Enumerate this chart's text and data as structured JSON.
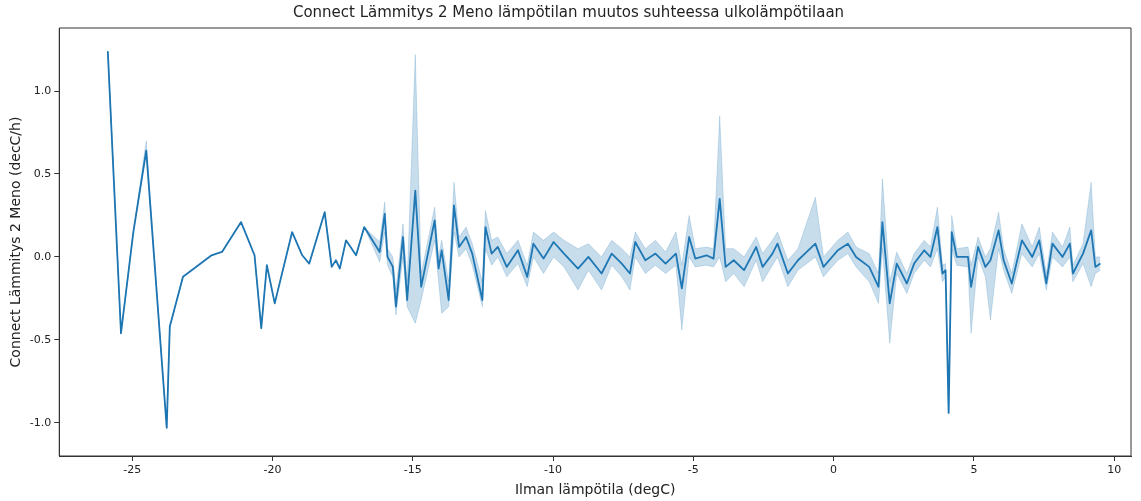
{
  "chart_data": {
    "type": "line",
    "title": "Connect Lämmitys 2 Meno lämpötilan muutos suhteessa ulkolämpötilaan",
    "xlabel": "Ilman lämpötila (degC)",
    "ylabel": "Connect Lämmitys 2 Meno (decC/h)",
    "xlim": [
      -27.6,
      10.6
    ],
    "ylim": [
      -1.2,
      1.38
    ],
    "xticks": [
      -25,
      -20,
      -15,
      -10,
      -5,
      0,
      5,
      10
    ],
    "yticks": [
      {
        "value": -1,
        "label": "-1.0"
      },
      {
        "value": -0.5,
        "label": "-0.5"
      },
      {
        "value": 0,
        "label": "0.0"
      },
      {
        "value": 0.5,
        "label": "0.5"
      },
      {
        "value": 1,
        "label": "1.0"
      }
    ],
    "grid": false,
    "legend": false,
    "marker": "none",
    "line_style": "solid",
    "series": [
      {
        "color": "#1f77b4",
        "x": [
          -25.87,
          -25.4,
          -24.96,
          -24.5,
          -23.77,
          -23.66,
          -23.19,
          -22.17,
          -21.8,
          -21.12,
          -20.64,
          -20.4,
          -20.2,
          -19.92,
          -19.3,
          -18.94,
          -18.69,
          -18.14,
          -17.89,
          -17.74,
          -17.6,
          -17.38,
          -17.02,
          -16.73,
          -16.18,
          -16.0,
          -15.9,
          -15.71,
          -15.6,
          -15.35,
          -15.2,
          -14.91,
          -14.7,
          -14.22,
          -14.08,
          -13.97,
          -13.72,
          -13.53,
          -13.35,
          -13.1,
          -12.88,
          -12.52,
          -12.41,
          -12.19,
          -11.97,
          -11.65,
          -11.25,
          -10.92,
          -10.7,
          -10.34,
          -9.98,
          -9.61,
          -9.11,
          -8.74,
          -8.27,
          -7.91,
          -7.55,
          -7.26,
          -7.07,
          -6.71,
          -6.35,
          -5.99,
          -5.62,
          -5.41,
          -5.15,
          -4.93,
          -4.53,
          -4.28,
          -4.06,
          -3.85,
          -3.56,
          -3.19,
          -2.76,
          -2.53,
          -2.18,
          -2.0,
          -1.63,
          -1.27,
          -0.65,
          -0.36,
          0.15,
          0.51,
          0.8,
          1.27,
          1.6,
          1.74,
          2.0,
          2.25,
          2.61,
          2.87,
          3.23,
          3.45,
          3.7,
          3.88,
          3.99,
          4.1,
          4.21,
          4.39,
          4.79,
          4.9,
          5.15,
          5.41,
          5.59,
          5.88,
          6.06,
          6.35,
          6.71,
          7.08,
          7.33,
          7.58,
          7.8,
          8.16,
          8.42,
          8.53,
          8.89,
          9.18,
          9.33,
          9.51
        ],
        "values": [
          1.24,
          -0.46,
          0.15,
          0.64,
          -1.03,
          -0.42,
          -0.12,
          0.01,
          0.03,
          0.21,
          0.01,
          -0.43,
          -0.05,
          -0.28,
          0.15,
          0.01,
          -0.04,
          0.27,
          -0.06,
          -0.02,
          -0.07,
          0.1,
          0.01,
          0.18,
          0.03,
          0.26,
          0.0,
          -0.06,
          -0.3,
          0.12,
          -0.26,
          0.4,
          -0.18,
          0.22,
          -0.07,
          0.04,
          -0.26,
          0.31,
          0.06,
          0.12,
          0.02,
          -0.26,
          0.18,
          0.02,
          0.06,
          -0.06,
          0.04,
          -0.12,
          0.08,
          -0.01,
          0.09,
          0.02,
          -0.07,
          0.0,
          -0.1,
          0.02,
          -0.04,
          -0.1,
          0.09,
          -0.02,
          0.02,
          -0.04,
          0.02,
          -0.19,
          0.12,
          -0.01,
          0.01,
          -0.01,
          0.35,
          -0.06,
          -0.02,
          -0.08,
          0.06,
          -0.06,
          0.02,
          0.08,
          -0.1,
          -0.02,
          0.08,
          -0.06,
          0.04,
          0.08,
          0.0,
          -0.06,
          -0.18,
          0.21,
          -0.28,
          -0.04,
          -0.16,
          -0.04,
          0.04,
          0.0,
          0.18,
          -0.1,
          -0.08,
          -0.94,
          0.15,
          0.0,
          0.0,
          -0.18,
          0.06,
          -0.06,
          -0.02,
          0.16,
          -0.02,
          -0.16,
          0.1,
          0.0,
          0.1,
          -0.16,
          0.08,
          0.0,
          0.08,
          -0.1,
          0.02,
          0.16,
          -0.06,
          -0.04
        ],
        "lower": [
          1.24,
          -0.46,
          0.15,
          0.64,
          -1.03,
          -0.42,
          -0.12,
          0.01,
          0.03,
          0.21,
          0.01,
          -0.43,
          -0.05,
          -0.28,
          0.15,
          0.01,
          -0.04,
          0.27,
          -0.06,
          -0.02,
          -0.07,
          0.1,
          0.01,
          0.18,
          -0.03,
          0.15,
          -0.05,
          -0.12,
          -0.35,
          0.0,
          -0.3,
          -0.4,
          -0.26,
          0.1,
          -0.15,
          -0.34,
          -0.3,
          0.15,
          0.0,
          0.05,
          -0.05,
          -0.3,
          0.05,
          -0.05,
          0.0,
          -0.12,
          -0.04,
          -0.18,
          0.0,
          -0.1,
          0.0,
          -0.06,
          -0.2,
          -0.08,
          -0.2,
          -0.05,
          -0.12,
          -0.2,
          0.0,
          -0.1,
          -0.05,
          -0.1,
          -0.05,
          -0.44,
          0.0,
          -0.06,
          -0.05,
          -0.06,
          0.0,
          -0.15,
          -0.1,
          -0.18,
          -0.02,
          -0.15,
          -0.05,
          0.0,
          -0.18,
          -0.08,
          0.0,
          -0.12,
          -0.02,
          0.02,
          -0.06,
          -0.15,
          -0.28,
          0.05,
          -0.52,
          -0.1,
          -0.22,
          -0.1,
          -0.02,
          -0.06,
          0.05,
          -0.15,
          -0.12,
          -0.94,
          0.05,
          -0.05,
          -0.06,
          -0.46,
          0.0,
          -0.12,
          -0.38,
          0.05,
          -0.08,
          -0.22,
          0.02,
          -0.06,
          0.02,
          -0.2,
          0.0,
          -0.06,
          0.0,
          -0.15,
          -0.04,
          -0.18,
          -0.1,
          -0.08
        ],
        "upper": [
          1.24,
          -0.46,
          0.15,
          0.7,
          -1.03,
          -0.42,
          -0.12,
          0.01,
          0.03,
          0.21,
          0.01,
          -0.43,
          -0.05,
          -0.28,
          0.15,
          0.01,
          -0.04,
          0.27,
          -0.06,
          -0.02,
          -0.07,
          0.1,
          0.01,
          0.18,
          0.09,
          0.33,
          0.05,
          0.0,
          -0.2,
          0.2,
          -0.15,
          1.22,
          -0.1,
          0.3,
          0.0,
          0.1,
          -0.15,
          0.45,
          0.12,
          0.18,
          0.08,
          -0.15,
          0.28,
          0.1,
          0.12,
          0.02,
          0.1,
          -0.05,
          0.15,
          0.1,
          0.15,
          0.1,
          0.05,
          0.08,
          0.0,
          0.1,
          0.05,
          0.0,
          0.15,
          0.05,
          0.1,
          0.03,
          0.15,
          -0.05,
          0.25,
          0.05,
          0.06,
          0.05,
          0.85,
          0.05,
          0.05,
          0.0,
          0.12,
          0.02,
          0.1,
          0.15,
          -0.02,
          0.05,
          0.36,
          0.0,
          0.1,
          0.15,
          0.06,
          0.02,
          -0.1,
          0.47,
          -0.15,
          0.03,
          -0.1,
          0.02,
          0.1,
          0.06,
          0.3,
          -0.05,
          -0.04,
          -0.94,
          0.25,
          0.05,
          0.06,
          -0.05,
          0.12,
          0.0,
          0.05,
          0.27,
          0.05,
          -0.1,
          0.2,
          0.06,
          0.18,
          -0.1,
          0.15,
          0.06,
          0.18,
          -0.05,
          0.08,
          0.45,
          0.0,
          0.0
        ]
      }
    ]
  }
}
